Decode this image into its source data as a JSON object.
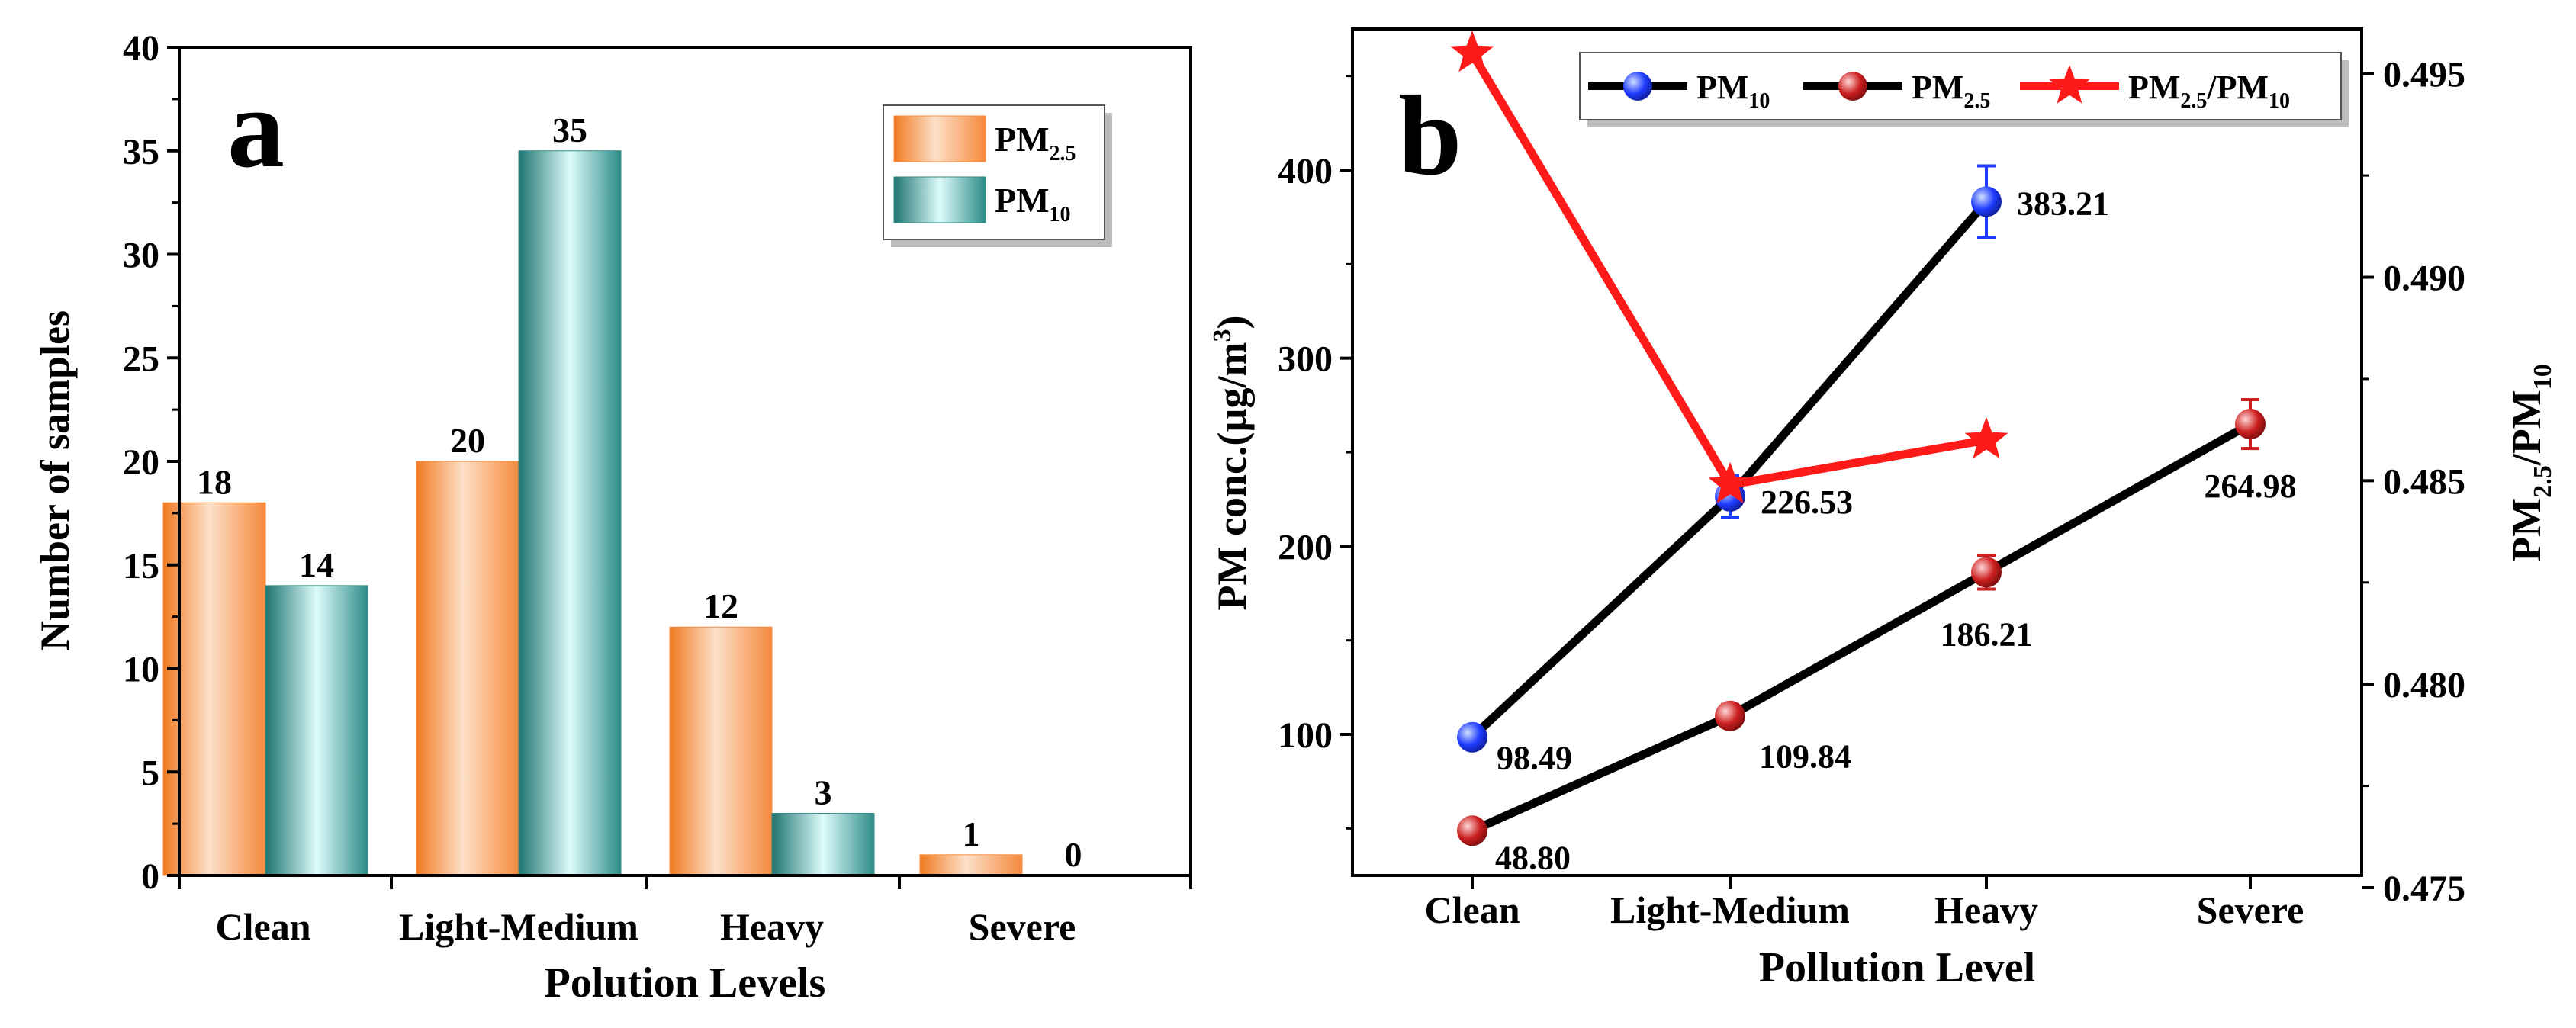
{
  "chart_data": [
    {
      "panel": "a",
      "type": "bar",
      "xlabel": "Polution Levels",
      "ylabel": "Number of samples",
      "ylim": [
        0,
        40
      ],
      "yticks": [
        0,
        5,
        10,
        15,
        20,
        25,
        30,
        35,
        40
      ],
      "categories": [
        "Clean",
        "Light-Medium",
        "Heavy",
        "Severe"
      ],
      "series": [
        {
          "name": "PM2.5",
          "label_base": "PM",
          "label_sub": "2.5",
          "color": "#f58a3c",
          "values": [
            18,
            20,
            12,
            1
          ]
        },
        {
          "name": "PM10",
          "label_base": "PM",
          "label_sub": "10",
          "color": "#2e8b87",
          "values": [
            14,
            35,
            3,
            0
          ]
        }
      ],
      "legend_position": "top-right"
    },
    {
      "panel": "b",
      "type": "line",
      "xlabel": "Pollution Level",
      "ylabel": {
        "main": "PM conc.(µg/m",
        "sup": "3",
        "end": ")"
      },
      "ylabel_right": {
        "a": "PM",
        "a_sub": "2.5",
        "b": "/PM",
        "b_sub": "10"
      },
      "categories": [
        "Clean",
        "Light-Medium",
        "Heavy",
        "Severe"
      ],
      "ylim": [
        25,
        475
      ],
      "yticks": [
        100,
        200,
        300,
        400
      ],
      "ylim_right": [
        0.4753,
        0.4961
      ],
      "yticks_right": [
        "0.475",
        "0.480",
        "0.485",
        "0.490",
        "0.495"
      ],
      "series": [
        {
          "name": "PM10",
          "axis": "left",
          "marker": "circle",
          "color": "#1f3bff",
          "x": [
            0,
            1,
            2
          ],
          "values": [
            98.49,
            226.53,
            383.21
          ],
          "labels": [
            "98.49",
            "226.53",
            "383.21"
          ],
          "errors": [
            6,
            11,
            19
          ]
        },
        {
          "name": "PM2.5",
          "axis": "left",
          "marker": "circle",
          "color": "#cc1f1f",
          "x": [
            0,
            1,
            2,
            3
          ],
          "values": [
            48.8,
            109.84,
            186.21,
            264.98
          ],
          "labels": [
            "48.80",
            "109.84",
            "186.21",
            "264.98"
          ],
          "errors": [
            4,
            6,
            9,
            13
          ]
        },
        {
          "name": "PM2.5/PM10",
          "axis": "right",
          "marker": "star",
          "color": "#ff1a1a",
          "x": [
            0,
            1,
            2
          ],
          "values": [
            0.4955,
            0.4849,
            0.486
          ]
        }
      ],
      "legend": [
        {
          "base": "PM",
          "sub": "10",
          "marker": "circle",
          "color": "#1f3bff"
        },
        {
          "base": "PM",
          "sub": "2.5",
          "marker": "circle",
          "color": "#cc1f1f"
        },
        {
          "base": "PM",
          "sub": "2.5",
          "base2": "/PM",
          "sub2": "10",
          "marker": "star",
          "color": "#ff1a1a"
        }
      ],
      "legend_position": "top"
    }
  ],
  "panel_labels": {
    "a": "a",
    "b": "b"
  }
}
